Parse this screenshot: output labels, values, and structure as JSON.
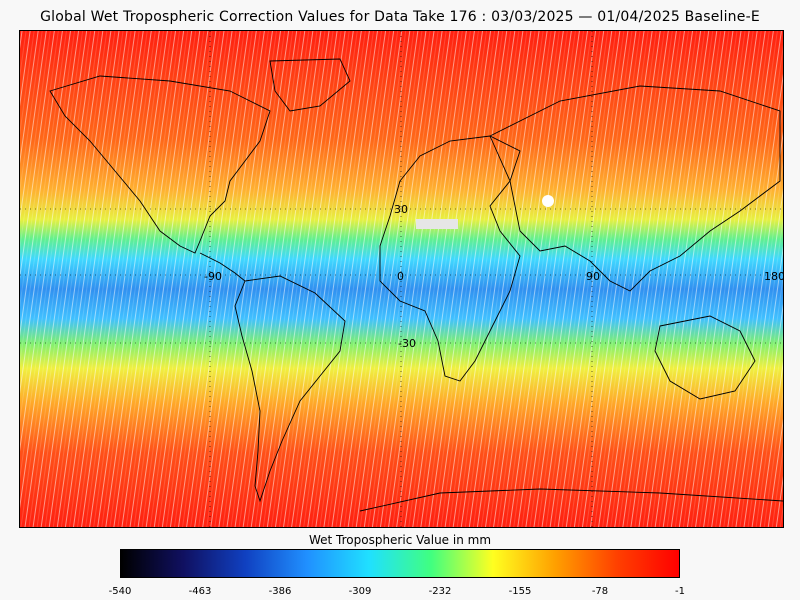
{
  "header": {
    "title": "Global Wet Tropospheric Correction Values for Data Take 176 : 03/03/2025 — 01/04/2025 Baseline-E"
  },
  "map": {
    "latitude_labels": [
      "30",
      "-30"
    ],
    "longitude_labels": [
      "-90",
      "0",
      "90",
      "180"
    ],
    "colors": {
      "ocean_high": "#ff2a10",
      "ocean_mid": "#ff9a20",
      "equatorial_low": "#4aa8ff",
      "land_outline": "#000000"
    }
  },
  "colorbar": {
    "title": "Wet Tropospheric Value in mm",
    "ticks": [
      "-540",
      "-463",
      "-386",
      "-309",
      "-232",
      "-155",
      "-78",
      "-1"
    ],
    "range": [
      -540,
      -1
    ],
    "colors": [
      "#000000",
      "#101060",
      "#1040c0",
      "#2090ff",
      "#20e0ff",
      "#40ff80",
      "#ffff20",
      "#ffa000",
      "#ff4000",
      "#ff0000"
    ]
  }
}
